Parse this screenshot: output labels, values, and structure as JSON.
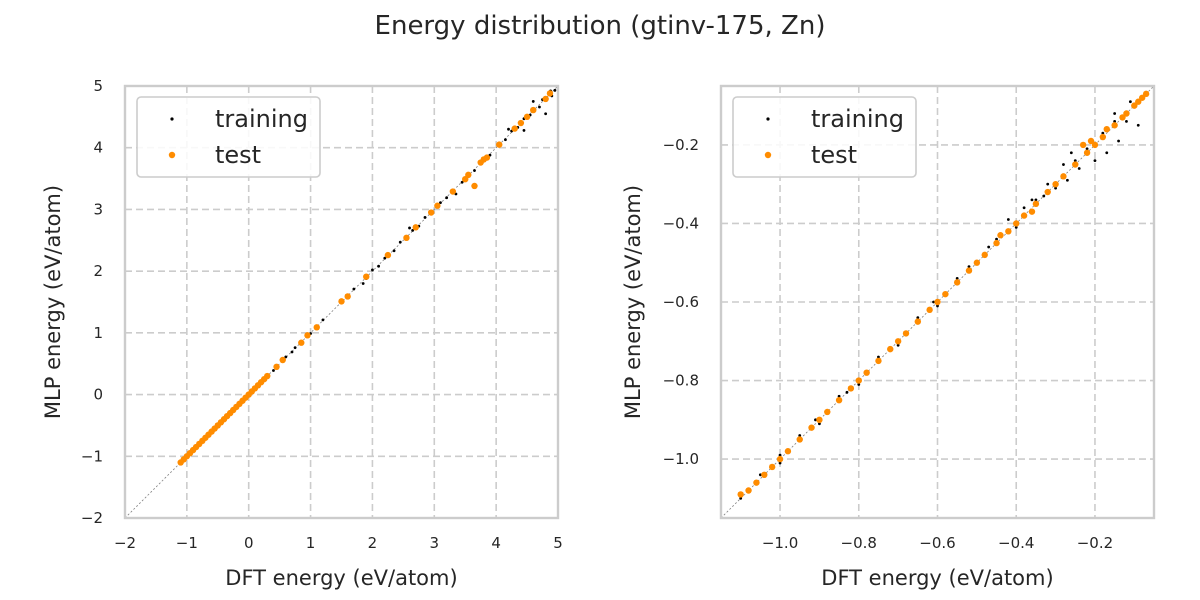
{
  "figure": {
    "title": "Energy distribution (gtinv-175, Zn)"
  },
  "colors": {
    "training": "#000000",
    "test": "#ff8c00",
    "grid": "#cccccc",
    "frame": "#cccccc",
    "diagonal": "#808080"
  },
  "chart_data": [
    {
      "type": "scatter",
      "title": "",
      "xlabel": "DFT energy (eV/atom)",
      "ylabel": "MLP energy (eV/atom)",
      "xlim": [
        -2,
        5
      ],
      "ylim": [
        -2,
        5
      ],
      "xticks": [
        -2,
        -1,
        0,
        1,
        2,
        3,
        4,
        5
      ],
      "yticks": [
        -2,
        -1,
        0,
        1,
        2,
        3,
        4,
        5
      ],
      "xtick_labels": [
        "−2",
        "−1",
        "0",
        "1",
        "2",
        "3",
        "4",
        "5"
      ],
      "ytick_labels": [
        "−2",
        "−1",
        "0",
        "1",
        "2",
        "3",
        "4",
        "5"
      ],
      "grid": true,
      "legend": "top-left",
      "reference_line": "y = x",
      "series": [
        {
          "name": "training",
          "color": "#000000",
          "marker": "small dot",
          "points": [
            [
              -1.08,
              -1.08
            ],
            [
              -0.95,
              -0.95
            ],
            [
              -0.8,
              -0.81
            ],
            [
              -0.6,
              -0.6
            ],
            [
              -0.4,
              -0.4
            ],
            [
              -0.2,
              -0.21
            ],
            [
              0.0,
              0.0
            ],
            [
              0.2,
              0.21
            ],
            [
              0.4,
              0.39
            ],
            [
              0.6,
              0.61
            ],
            [
              0.7,
              0.69
            ],
            [
              0.75,
              0.76
            ],
            [
              0.85,
              0.86
            ],
            [
              1.0,
              0.99
            ],
            [
              1.2,
              1.21
            ],
            [
              1.5,
              1.49
            ],
            [
              1.7,
              1.71
            ],
            [
              1.9,
              1.88
            ],
            [
              2.0,
              2.02
            ],
            [
              2.1,
              2.08
            ],
            [
              2.2,
              2.21
            ],
            [
              2.35,
              2.33
            ],
            [
              2.45,
              2.47
            ],
            [
              2.55,
              2.55
            ],
            [
              2.65,
              2.66
            ],
            [
              2.75,
              2.73
            ],
            [
              2.85,
              2.87
            ],
            [
              2.95,
              2.94
            ],
            [
              3.1,
              3.11
            ],
            [
              3.2,
              3.19
            ],
            [
              3.3,
              3.31
            ],
            [
              3.45,
              3.44
            ],
            [
              3.55,
              3.57
            ],
            [
              3.65,
              3.63
            ],
            [
              3.8,
              3.82
            ],
            [
              3.9,
              3.88
            ],
            [
              4.05,
              4.07
            ],
            [
              4.15,
              4.13
            ],
            [
              4.25,
              4.27
            ],
            [
              4.35,
              4.33
            ],
            [
              4.45,
              4.47
            ],
            [
              4.55,
              4.53
            ],
            [
              4.6,
              4.63
            ],
            [
              4.7,
              4.66
            ],
            [
              4.75,
              4.78
            ],
            [
              4.82,
              4.8
            ],
            [
              4.88,
              4.92
            ],
            [
              4.95,
              4.93
            ],
            [
              4.45,
              4.28
            ],
            [
              4.6,
              4.75
            ],
            [
              3.35,
              3.25
            ],
            [
              2.6,
              2.7
            ],
            [
              1.85,
              1.8
            ],
            [
              4.8,
              4.55
            ],
            [
              4.2,
              4.3
            ],
            [
              4.9,
              4.84
            ]
          ]
        },
        {
          "name": "test",
          "color": "#ff8c00",
          "marker": "dot",
          "points": [
            [
              -1.1,
              -1.1
            ],
            [
              -1.05,
              -1.05
            ],
            [
              -1.0,
              -1.0
            ],
            [
              -0.95,
              -0.95
            ],
            [
              -0.9,
              -0.9
            ],
            [
              -0.85,
              -0.85
            ],
            [
              -0.8,
              -0.8
            ],
            [
              -0.75,
              -0.75
            ],
            [
              -0.7,
              -0.7
            ],
            [
              -0.65,
              -0.65
            ],
            [
              -0.6,
              -0.6
            ],
            [
              -0.55,
              -0.55
            ],
            [
              -0.5,
              -0.5
            ],
            [
              -0.45,
              -0.45
            ],
            [
              -0.4,
              -0.4
            ],
            [
              -0.35,
              -0.35
            ],
            [
              -0.3,
              -0.3
            ],
            [
              -0.25,
              -0.25
            ],
            [
              -0.2,
              -0.2
            ],
            [
              -0.15,
              -0.15
            ],
            [
              -0.1,
              -0.1
            ],
            [
              -0.05,
              -0.05
            ],
            [
              0.0,
              0.0
            ],
            [
              0.05,
              0.05
            ],
            [
              0.1,
              0.1
            ],
            [
              0.15,
              0.15
            ],
            [
              0.2,
              0.2
            ],
            [
              0.25,
              0.25
            ],
            [
              0.3,
              0.3
            ],
            [
              0.45,
              0.45
            ],
            [
              0.55,
              0.56
            ],
            [
              0.85,
              0.84
            ],
            [
              0.95,
              0.96
            ],
            [
              1.1,
              1.09
            ],
            [
              1.5,
              1.51
            ],
            [
              1.6,
              1.59
            ],
            [
              1.9,
              1.91
            ],
            [
              2.25,
              2.26
            ],
            [
              2.55,
              2.54
            ],
            [
              2.7,
              2.71
            ],
            [
              2.95,
              2.95
            ],
            [
              3.05,
              3.06
            ],
            [
              3.3,
              3.29
            ],
            [
              3.5,
              3.49
            ],
            [
              3.55,
              3.56
            ],
            [
              3.65,
              3.38
            ],
            [
              3.75,
              3.76
            ],
            [
              3.8,
              3.81
            ],
            [
              3.85,
              3.84
            ],
            [
              4.05,
              4.05
            ],
            [
              4.3,
              4.31
            ],
            [
              4.4,
              4.4
            ],
            [
              4.5,
              4.5
            ],
            [
              4.6,
              4.61
            ],
            [
              4.8,
              4.79
            ],
            [
              4.87,
              4.88
            ]
          ]
        }
      ]
    },
    {
      "type": "scatter",
      "title": "",
      "xlabel": "DFT energy (eV/atom)",
      "ylabel": "MLP energy (eV/atom)",
      "xlim": [
        -1.15,
        -0.05
      ],
      "ylim": [
        -1.15,
        -0.05
      ],
      "xticks": [
        -1.0,
        -0.8,
        -0.6,
        -0.4,
        -0.2
      ],
      "yticks": [
        -1.0,
        -0.8,
        -0.6,
        -0.4,
        -0.2
      ],
      "xtick_labels": [
        "−1.0",
        "−0.8",
        "−0.6",
        "−0.4",
        "−0.2"
      ],
      "ytick_labels": [
        "−1.0",
        "−0.8",
        "−0.6",
        "−0.4",
        "−0.2"
      ],
      "grid": true,
      "legend": "top-left",
      "reference_line": "y = x",
      "series": [
        {
          "name": "training",
          "color": "#000000",
          "marker": "small dot",
          "points": [
            [
              -1.1,
              -1.1
            ],
            [
              -1.05,
              -1.04
            ],
            [
              -1.0,
              -1.01
            ],
            [
              -0.95,
              -0.94
            ],
            [
              -0.9,
              -0.91
            ],
            [
              -0.85,
              -0.84
            ],
            [
              -0.8,
              -0.81
            ],
            [
              -0.75,
              -0.74
            ],
            [
              -0.7,
              -0.71
            ],
            [
              -0.65,
              -0.64
            ],
            [
              -0.6,
              -0.61
            ],
            [
              -0.55,
              -0.54
            ],
            [
              -0.5,
              -0.5
            ],
            [
              -0.45,
              -0.44
            ],
            [
              -0.4,
              -0.41
            ],
            [
              -0.35,
              -0.34
            ],
            [
              -0.3,
              -0.31
            ],
            [
              -0.25,
              -0.24
            ],
            [
              -0.2,
              -0.2
            ],
            [
              -0.15,
              -0.14
            ],
            [
              -0.1,
              -0.1
            ],
            [
              -0.08,
              -0.08
            ],
            [
              -0.42,
              -0.39
            ],
            [
              -0.38,
              -0.36
            ],
            [
              -0.28,
              -0.25
            ],
            [
              -0.22,
              -0.21
            ],
            [
              -0.18,
              -0.17
            ],
            [
              -0.12,
              -0.14
            ],
            [
              -0.32,
              -0.3
            ],
            [
              -0.47,
              -0.46
            ],
            [
              -0.27,
              -0.29
            ],
            [
              -0.17,
              -0.22
            ],
            [
              -0.14,
              -0.19
            ],
            [
              -0.09,
              -0.15
            ],
            [
              -0.2,
              -0.24
            ],
            [
              -0.24,
              -0.26
            ],
            [
              -0.36,
              -0.34
            ],
            [
              -0.52,
              -0.51
            ],
            [
              -0.61,
              -0.6
            ],
            [
              -0.72,
              -0.72
            ],
            [
              -0.83,
              -0.83
            ],
            [
              -0.91,
              -0.9
            ],
            [
              -1.0,
              -0.99
            ],
            [
              -0.15,
              -0.12
            ],
            [
              -0.11,
              -0.09
            ],
            [
              -0.26,
              -0.22
            ],
            [
              -0.33,
              -0.33
            ]
          ]
        },
        {
          "name": "test",
          "color": "#ff8c00",
          "marker": "dot",
          "points": [
            [
              -1.1,
              -1.09
            ],
            [
              -1.08,
              -1.08
            ],
            [
              -1.06,
              -1.06
            ],
            [
              -1.04,
              -1.04
            ],
            [
              -1.02,
              -1.02
            ],
            [
              -1.0,
              -1.0
            ],
            [
              -0.98,
              -0.98
            ],
            [
              -0.95,
              -0.95
            ],
            [
              -0.92,
              -0.92
            ],
            [
              -0.9,
              -0.9
            ],
            [
              -0.88,
              -0.88
            ],
            [
              -0.85,
              -0.85
            ],
            [
              -0.82,
              -0.82
            ],
            [
              -0.8,
              -0.8
            ],
            [
              -0.78,
              -0.78
            ],
            [
              -0.75,
              -0.75
            ],
            [
              -0.72,
              -0.72
            ],
            [
              -0.7,
              -0.7
            ],
            [
              -0.68,
              -0.68
            ],
            [
              -0.65,
              -0.65
            ],
            [
              -0.62,
              -0.62
            ],
            [
              -0.6,
              -0.6
            ],
            [
              -0.58,
              -0.58
            ],
            [
              -0.55,
              -0.55
            ],
            [
              -0.52,
              -0.52
            ],
            [
              -0.5,
              -0.5
            ],
            [
              -0.48,
              -0.48
            ],
            [
              -0.45,
              -0.45
            ],
            [
              -0.42,
              -0.42
            ],
            [
              -0.4,
              -0.4
            ],
            [
              -0.38,
              -0.38
            ],
            [
              -0.35,
              -0.35
            ],
            [
              -0.32,
              -0.32
            ],
            [
              -0.3,
              -0.3
            ],
            [
              -0.28,
              -0.28
            ],
            [
              -0.25,
              -0.25
            ],
            [
              -0.22,
              -0.22
            ],
            [
              -0.2,
              -0.2
            ],
            [
              -0.18,
              -0.18
            ],
            [
              -0.15,
              -0.15
            ],
            [
              -0.12,
              -0.12
            ],
            [
              -0.1,
              -0.1
            ],
            [
              -0.08,
              -0.08
            ],
            [
              -0.07,
              -0.07
            ],
            [
              -0.23,
              -0.2
            ],
            [
              -0.21,
              -0.19
            ],
            [
              -0.17,
              -0.16
            ],
            [
              -0.13,
              -0.13
            ],
            [
              -0.09,
              -0.09
            ],
            [
              -0.36,
              -0.37
            ],
            [
              -0.44,
              -0.43
            ]
          ]
        }
      ]
    }
  ]
}
